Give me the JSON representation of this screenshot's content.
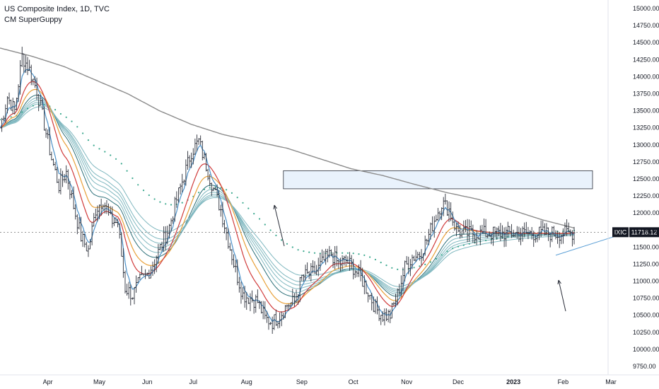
{
  "legend": {
    "title": "US Composite Index, 1D, TVC",
    "indicator": "CM SuperGuppy"
  },
  "price_tag": {
    "symbol": "IXIC",
    "value": "11718.12"
  },
  "colors": {
    "bars": "#2a2e39",
    "fast_ema": "#4a90c8",
    "red_ema": "#d03b3b",
    "orange_ema": "#e8a13a",
    "guppy": "#7fb7bf",
    "guppy_dark": "#2b6f78",
    "dotted": "#3aa88e",
    "sma": "#8c8c8c",
    "rect_fill": "#e9f2fc",
    "trendline": "#5b9fd6",
    "arrow": "#2a2e39",
    "tag_bg": "#131722"
  },
  "chart_data": {
    "type": "line",
    "title": "US Composite Index, 1D, TVC",
    "ylim": [
      9625,
      15125
    ],
    "yticks": [
      "9750.00",
      "10000.00",
      "10250.00",
      "10500.00",
      "10750.00",
      "11000.00",
      "11250.00",
      "11500.00",
      "11750.00",
      "12000.00",
      "12250.00",
      "12500.00",
      "12750.00",
      "13000.00",
      "13250.00",
      "13500.00",
      "13750.00",
      "14000.00",
      "14250.00",
      "14500.00",
      "14750.00",
      "15000.00"
    ],
    "xticks": [
      "Apr",
      "May",
      "Jun",
      "Jul",
      "Aug",
      "Sep",
      "Oct",
      "Nov",
      "Dec",
      "2023",
      "Feb",
      "Mar"
    ],
    "last_price": 11718.12,
    "series": [
      {
        "key": "price",
        "x": [
          0,
          4,
          8,
          12,
          16,
          20,
          24,
          28,
          32,
          36,
          40,
          44,
          48,
          52,
          56,
          60,
          64,
          68,
          72,
          76,
          80,
          84,
          88,
          92,
          96,
          100,
          104,
          108,
          112,
          116,
          120,
          124,
          128,
          132,
          136,
          140,
          144,
          148,
          152,
          156,
          160,
          164,
          168,
          172,
          176,
          180,
          184,
          188,
          192,
          196,
          200,
          204,
          208,
          212,
          216,
          220,
          224,
          228,
          232,
          236,
          240,
          244,
          248,
          252,
          256,
          260,
          264,
          268,
          272,
          276,
          280,
          284,
          288,
          292,
          296,
          300,
          304,
          308,
          312
        ],
        "values": [
          13250,
          13700,
          13500,
          14300,
          14100,
          13800,
          13300,
          12800,
          12400,
          12600,
          12100,
          11650,
          11450,
          12050,
          12200,
          11900,
          11850,
          10900,
          10800,
          11000,
          11100,
          11300,
          11550,
          11800,
          12200,
          12550,
          12900,
          13050,
          12700,
          12350,
          12050,
          11600,
          11150,
          10800,
          10750,
          10700,
          10450,
          10400,
          10500,
          10650,
          10700,
          11050,
          11100,
          11150,
          11300,
          11400,
          11250,
          11300,
          11200,
          11050,
          10850,
          10600,
          10500,
          10500,
          10800,
          11200,
          11350,
          11400,
          11600,
          11900,
          12150,
          12050,
          11750,
          11700,
          11700,
          11700,
          11700,
          11700,
          11700,
          11700,
          11700,
          11700,
          11700,
          11700,
          11700,
          11700,
          11700,
          11700,
          11718
        ]
      },
      {
        "key": "sma200",
        "values": [
          14420,
          14300,
          14150,
          13950,
          13750,
          13500,
          13300,
          13150,
          13050,
          12950,
          12800,
          12650,
          12550,
          12420,
          12300,
          12200,
          12050,
          11900,
          11780
        ]
      }
    ]
  }
}
